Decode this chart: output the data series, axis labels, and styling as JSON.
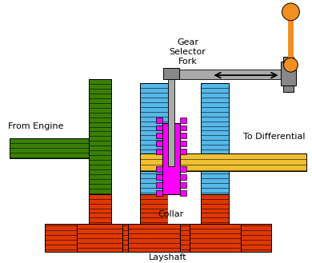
{
  "bg_color": "#ffffff",
  "colors": {
    "green_dark": "#3a8000",
    "blue": "#55b8e8",
    "yellow": "#f0c030",
    "red": "#e03800",
    "magenta": "#ff00ff",
    "gray": "#aaaaaa",
    "gray_dark": "#888888",
    "orange_ball": "#f09020",
    "black": "#000000",
    "white": "#ffffff"
  },
  "labels": {
    "from_engine": "From Engine",
    "to_differential": "To Differential",
    "collar": "Collar",
    "layshaft": "Layshaft",
    "gear_selector": "Gear\nSelector\nFork"
  }
}
